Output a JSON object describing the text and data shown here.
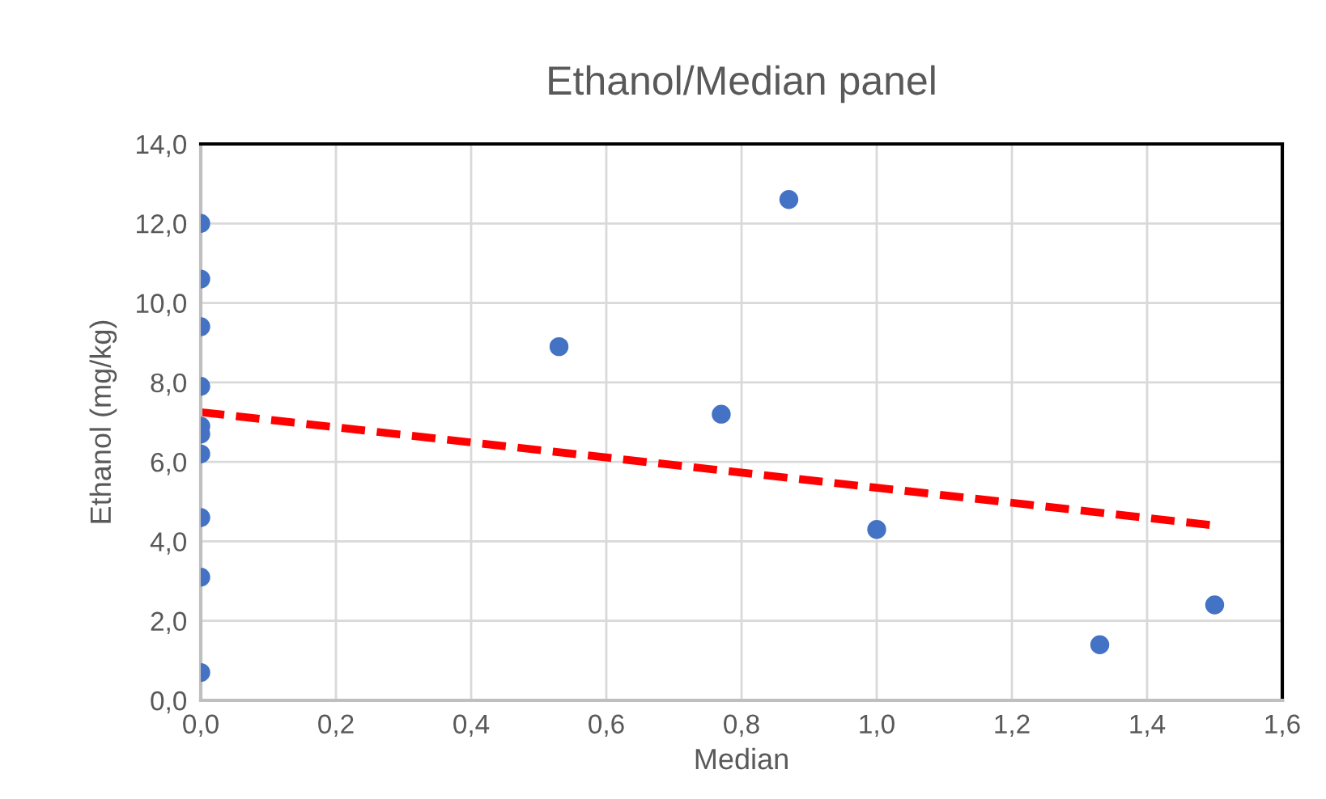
{
  "chart_data": {
    "type": "scatter",
    "title": "Ethanol/Median panel",
    "xlabel": "Median",
    "ylabel": "Ethanol (mg/kg)",
    "series": [
      {
        "color": "#4472c4",
        "marker": "circle",
        "x": [
          0,
          0,
          0,
          0,
          0,
          0,
          0,
          0,
          0,
          0,
          0.53,
          0.77,
          0.87,
          1.0,
          1.33,
          1.5
        ],
        "values": [
          12.0,
          10.6,
          9.4,
          7.9,
          6.9,
          6.7,
          6.2,
          4.6,
          3.1,
          0.7,
          8.9,
          7.2,
          12.6,
          4.3,
          1.4,
          2.4
        ]
      },
      {
        "type": "line",
        "color": "#ff0000",
        "line_style": "dashed",
        "marker": "none",
        "x": [
          0,
          1.5
        ],
        "values": [
          7.25,
          4.4
        ]
      }
    ],
    "xlim": [
      0,
      1.6
    ],
    "ylim": [
      0,
      14
    ],
    "xticks": [
      {
        "value": 0,
        "label": "0,0"
      },
      {
        "value": 0.2,
        "label": "0,2"
      },
      {
        "value": 0.4,
        "label": "0,4"
      },
      {
        "value": 0.6,
        "label": "0,6"
      },
      {
        "value": 0.8,
        "label": "0,8"
      },
      {
        "value": 1.0,
        "label": "1,0"
      },
      {
        "value": 1.2,
        "label": "1,2"
      },
      {
        "value": 1.4,
        "label": "1,4"
      },
      {
        "value": 1.6,
        "label": "1,6"
      }
    ],
    "yticks": [
      {
        "value": 0,
        "label": "0,0"
      },
      {
        "value": 2,
        "label": "2,0"
      },
      {
        "value": 4,
        "label": "4,0"
      },
      {
        "value": 6,
        "label": "6,0"
      },
      {
        "value": 8,
        "label": "8,0"
      },
      {
        "value": 10,
        "label": "10,0"
      },
      {
        "value": 12,
        "label": "12,0"
      },
      {
        "value": 14,
        "label": "14,0"
      }
    ],
    "grid": true,
    "legend": false
  }
}
